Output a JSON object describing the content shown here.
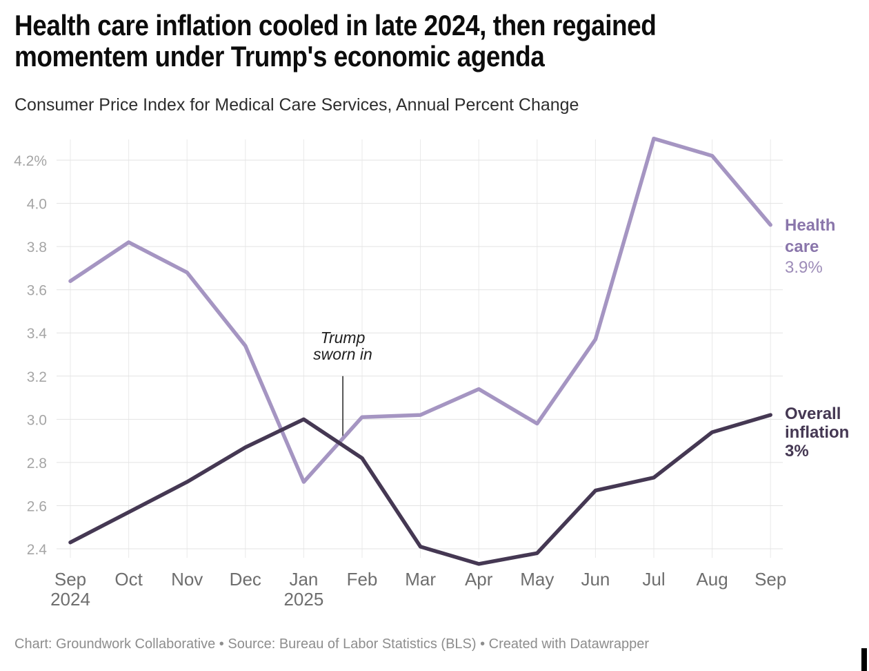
{
  "chart_data": {
    "type": "line",
    "title_lines": [
      "Health care inflation cooled in late 2024, then regained",
      "momentem under Trump's economic agenda"
    ],
    "subtitle": "Consumer Price Index for Medical Care Services, Annual Percent Change",
    "x_labels": [
      "Sep",
      "Oct",
      "Nov",
      "Dec",
      "Jan",
      "Feb",
      "Mar",
      "Apr",
      "May",
      "Jun",
      "Jul",
      "Aug",
      "Sep"
    ],
    "x_sublabels": [
      {
        "index": 0,
        "label": "2024"
      },
      {
        "index": 4,
        "label": "2025"
      }
    ],
    "y_ticks": [
      {
        "value": 4.2,
        "label": "4.2%"
      },
      {
        "value": 4.0,
        "label": "4.0"
      },
      {
        "value": 3.8,
        "label": "3.8"
      },
      {
        "value": 3.6,
        "label": "3.6"
      },
      {
        "value": 3.4,
        "label": "3.4"
      },
      {
        "value": 3.2,
        "label": "3.2"
      },
      {
        "value": 3.0,
        "label": "3.0"
      },
      {
        "value": 2.8,
        "label": "2.8"
      },
      {
        "value": 2.6,
        "label": "2.6"
      },
      {
        "value": 2.4,
        "label": "2.4"
      }
    ],
    "ylim": [
      2.28,
      4.34
    ],
    "grid": true,
    "legend_position": "right-inline",
    "series": [
      {
        "name": "Health care",
        "color": "#a595c2",
        "values": [
          3.64,
          3.82,
          3.68,
          3.34,
          2.71,
          3.01,
          3.02,
          3.14,
          2.98,
          3.37,
          4.3,
          4.22,
          3.9
        ],
        "end_label": {
          "title": "Health care",
          "value": "3.9%",
          "title_color": "#8a76ab",
          "value_color": "#9d8cb8"
        }
      },
      {
        "name": "Overall inflation",
        "color": "#453853",
        "values": [
          2.43,
          2.57,
          2.71,
          2.87,
          3.0,
          2.82,
          2.41,
          2.33,
          2.38,
          2.67,
          2.73,
          2.94,
          3.02
        ],
        "end_label": {
          "title": "Overall inflation",
          "value": "3%",
          "title_color": "#453853",
          "value_color": "#453853"
        }
      }
    ],
    "annotation": {
      "text_lines": [
        "Trump",
        "sworn in"
      ],
      "x_index": 4.67,
      "line_value_from": 3.2,
      "line_value_to": 2.92
    },
    "colors": {
      "grid_horizontal": "#e3e3e3",
      "grid_vertical": "#e9e9e9",
      "y_tick_text": "#a5a5a5",
      "x_tick_text": "#6e6e6e",
      "annotation_line": "#2e2e2e"
    }
  },
  "footer": {
    "text": "Chart: Groundwork Collaborative • Source: Bureau of Labor Statistics (BLS) • Created with Datawrapper"
  }
}
